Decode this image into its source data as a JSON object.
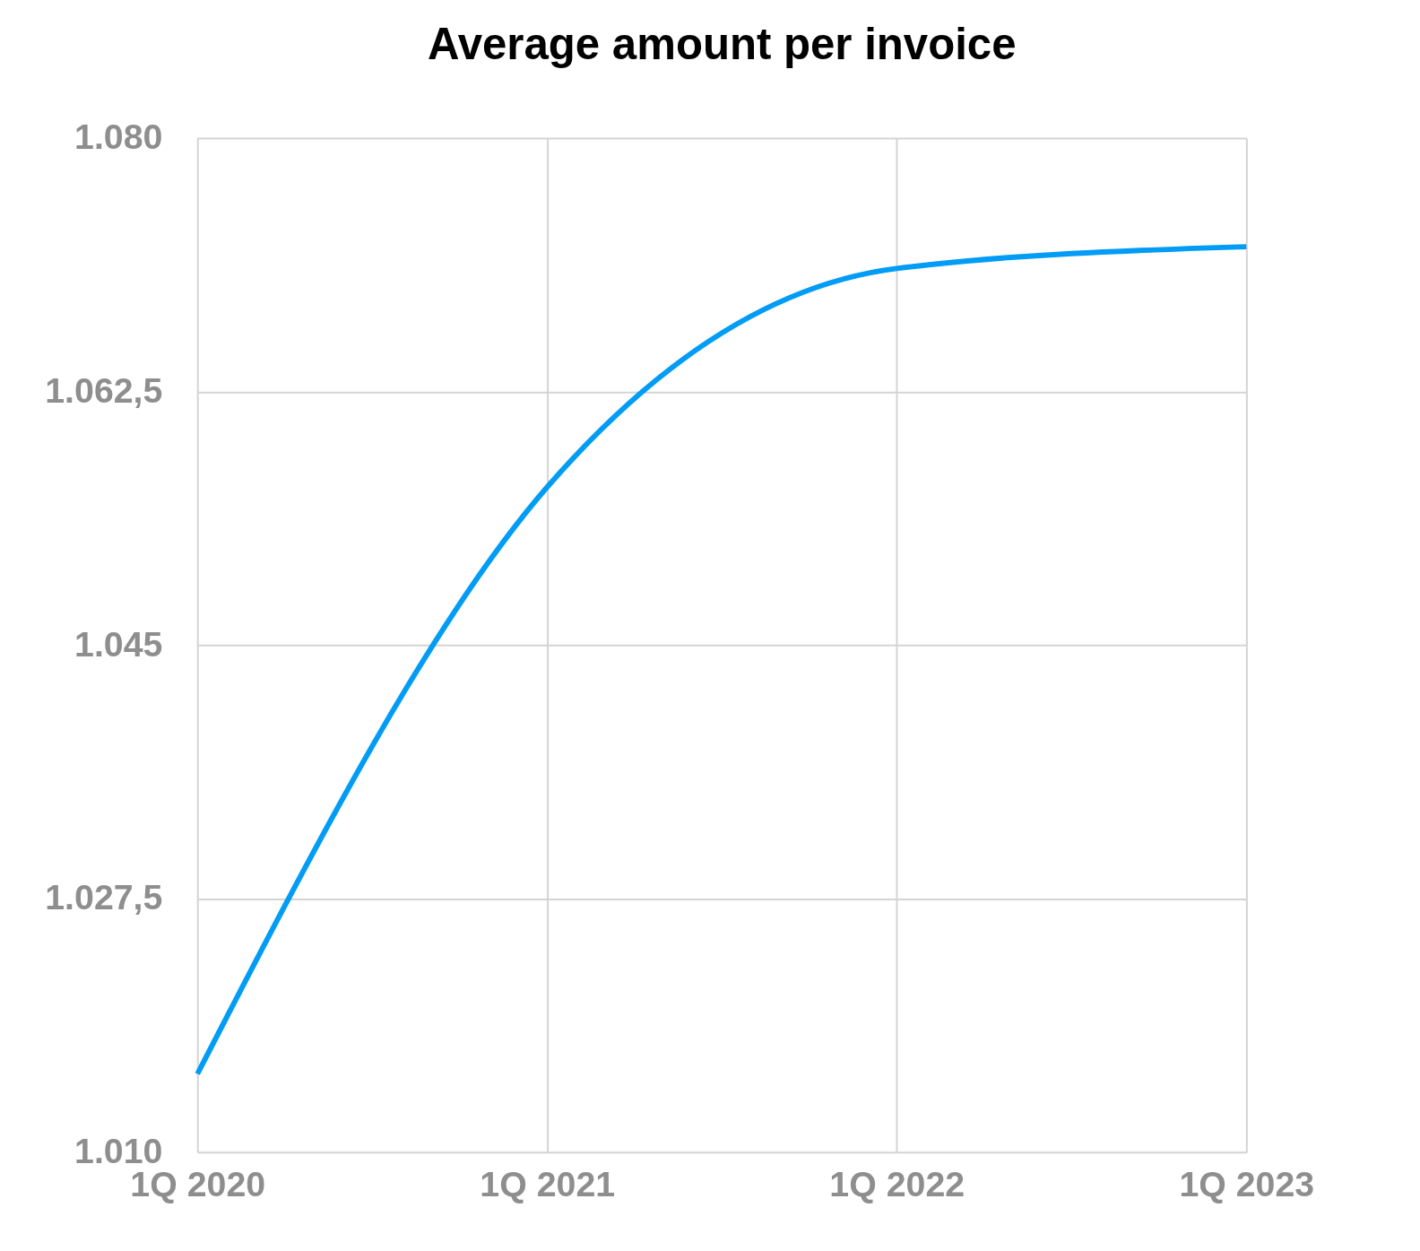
{
  "chart_data": {
    "type": "line",
    "title": "Average amount per invoice",
    "categories": [
      "1Q 2020",
      "1Q 2021",
      "1Q 2022",
      "1Q 2023"
    ],
    "series": [
      {
        "color": "#009cf5",
        "values": [
          1015.4,
          1055.9,
          1071,
          1072.5
        ]
      }
    ],
    "ylim": [
      1010,
      1080
    ],
    "yticks": [
      {
        "value": 1010,
        "label": "1.010"
      },
      {
        "value": 1027.5,
        "label": "1.027,5"
      },
      {
        "value": 1045,
        "label": "1.045"
      },
      {
        "value": 1062.5,
        "label": "1.062,5"
      },
      {
        "value": 1080,
        "label": "1.080"
      }
    ],
    "grid": true,
    "legend": false,
    "marker": "none",
    "line_style": "solid"
  }
}
